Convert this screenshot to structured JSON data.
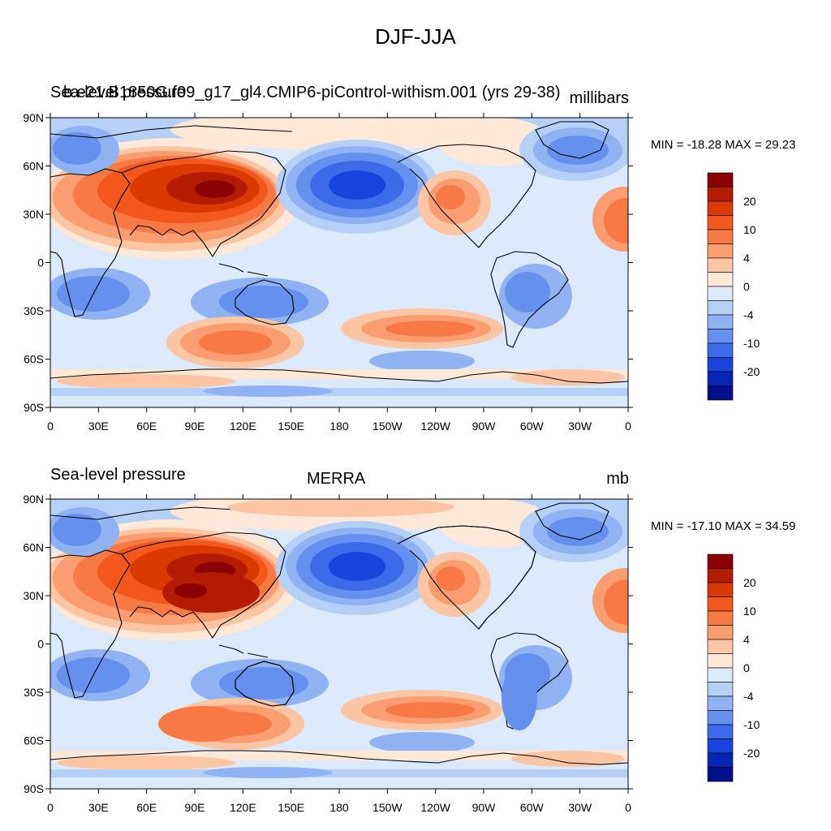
{
  "title": "DJF-JJA",
  "panels": [
    {
      "left_title": "Sea-level pressure",
      "center_title": "b.e21.B1850G.f09_g17_gl4.CMIP6-piControl-withism.001 (yrs 29-38)",
      "units": "millibars",
      "minmax": "MIN = -18.28 MAX =  29.23"
    },
    {
      "left_title": "Sea-level pressure",
      "center_title": "MERRA",
      "units": "mb",
      "minmax": "MIN = -17.10 MAX =  34.59"
    }
  ],
  "lat_ticks": [
    "90N",
    "60N",
    "30N",
    "0",
    "30S",
    "60S",
    "90S"
  ],
  "lon_ticks": [
    "0",
    "30E",
    "60E",
    "90E",
    "120E",
    "150E",
    "180",
    "150W",
    "120W",
    "90W",
    "60W",
    "30W",
    "0"
  ],
  "colorbar": {
    "colors": [
      "#8b0000",
      "#b31c00",
      "#d93a00",
      "#f2571d",
      "#f77a45",
      "#fa9d70",
      "#fcc5a3",
      "#fee8d8",
      "#dbe9fb",
      "#b5d0f7",
      "#8eb2f2",
      "#6690ed",
      "#3d6ae8",
      "#1a45dc",
      "#0525b5",
      "#000f8a"
    ],
    "labels": [
      "20",
      "10",
      "4",
      "0",
      "-4",
      "-10",
      "-20"
    ]
  }
}
